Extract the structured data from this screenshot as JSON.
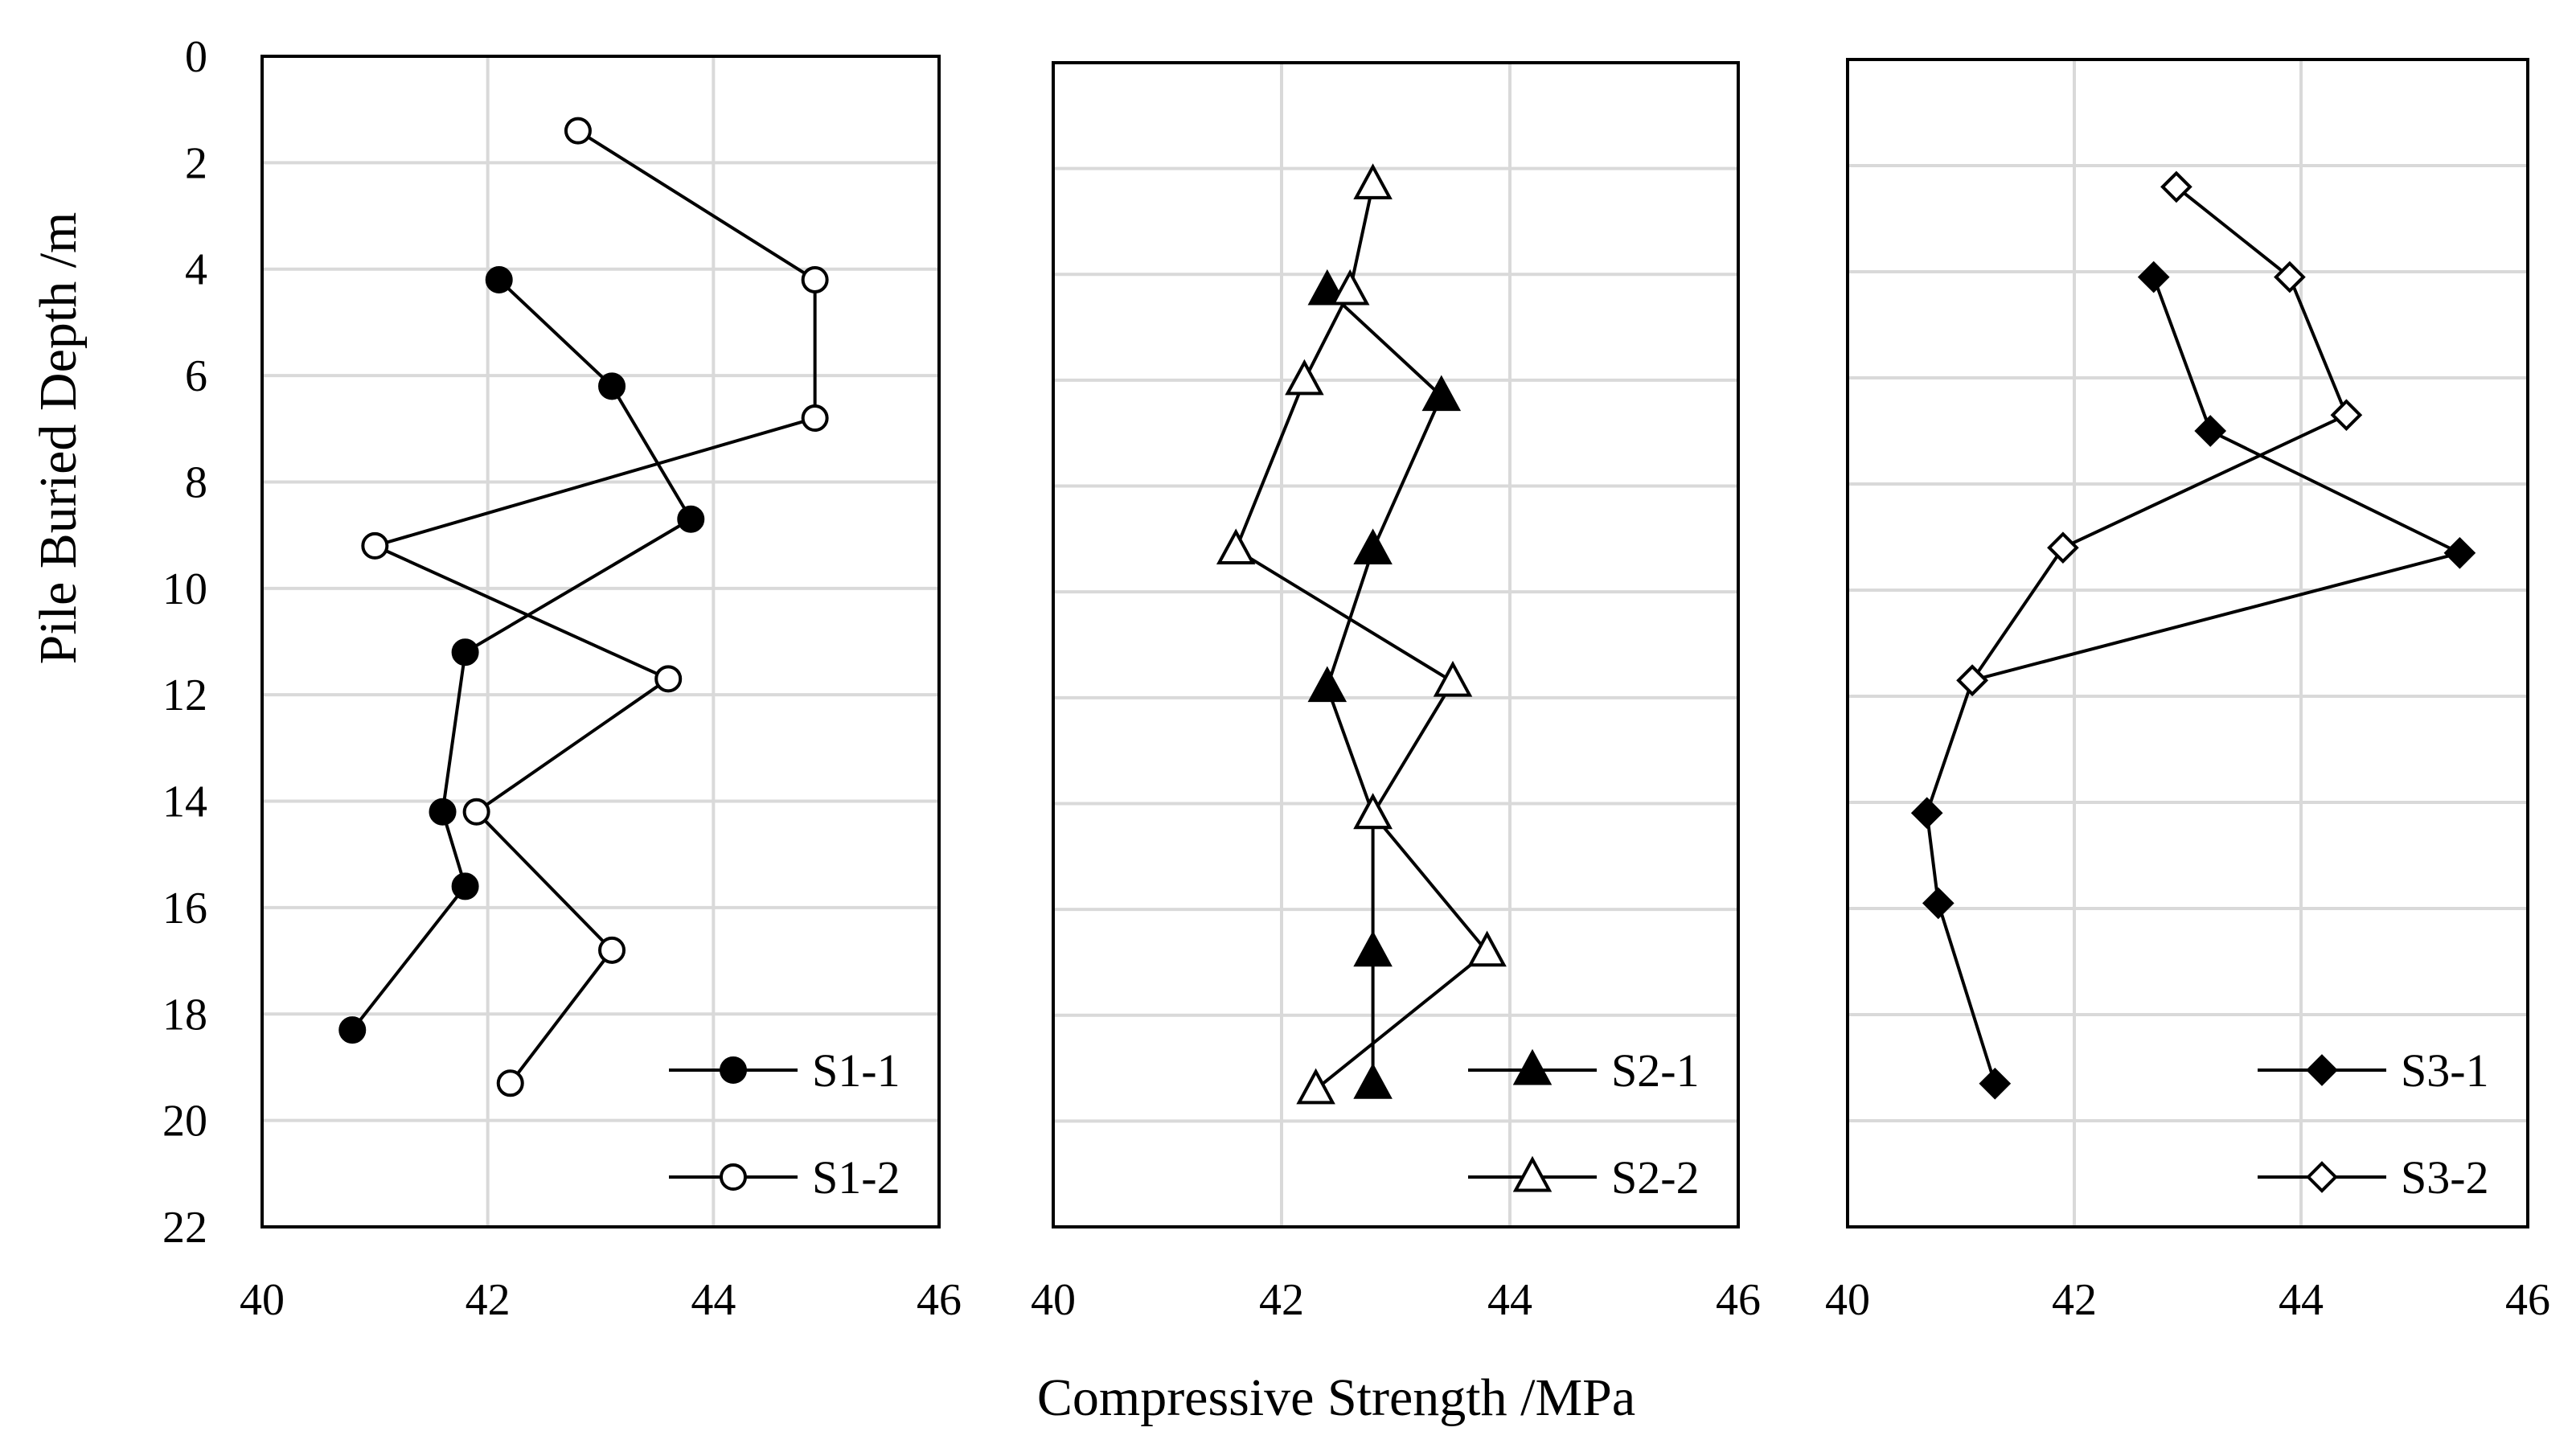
{
  "chart_data": {
    "type": "line",
    "figure_xlabel": "Compressive Strength /MPa",
    "figure_ylabel": "Pile Buried Depth /m",
    "xlim": [
      40,
      46
    ],
    "ylim": [
      22,
      0
    ],
    "x_ticks": [
      "40",
      "42",
      "44",
      "46"
    ],
    "y_ticks": [
      "0",
      "2",
      "4",
      "6",
      "8",
      "10",
      "12",
      "14",
      "16",
      "18",
      "20",
      "22"
    ],
    "gridlines": true,
    "panels": [
      {
        "legend_position": "bottom-right",
        "series": [
          {
            "name": "S1-1",
            "marker": "circle",
            "filled": true,
            "points": [
              {
                "x": 42.1,
                "y": 4.2
              },
              {
                "x": 43.1,
                "y": 6.2
              },
              {
                "x": 43.8,
                "y": 8.7
              },
              {
                "x": 41.8,
                "y": 11.2
              },
              {
                "x": 41.6,
                "y": 14.2
              },
              {
                "x": 41.8,
                "y": 15.6
              },
              {
                "x": 40.8,
                "y": 18.3
              }
            ]
          },
          {
            "name": "S1-2",
            "marker": "circle",
            "filled": false,
            "points": [
              {
                "x": 42.8,
                "y": 1.4
              },
              {
                "x": 44.9,
                "y": 4.2
              },
              {
                "x": 44.9,
                "y": 6.8
              },
              {
                "x": 41.0,
                "y": 9.2
              },
              {
                "x": 43.6,
                "y": 11.7
              },
              {
                "x": 41.9,
                "y": 14.2
              },
              {
                "x": 43.1,
                "y": 16.8
              },
              {
                "x": 42.2,
                "y": 19.3
              }
            ]
          }
        ]
      },
      {
        "legend_position": "bottom-right",
        "series": [
          {
            "name": "S2-1",
            "marker": "triangle",
            "filled": true,
            "points": [
              {
                "x": 42.4,
                "y": 4.3
              },
              {
                "x": 43.4,
                "y": 6.3
              },
              {
                "x": 42.8,
                "y": 9.2
              },
              {
                "x": 42.4,
                "y": 11.8
              },
              {
                "x": 42.8,
                "y": 14.2
              },
              {
                "x": 42.8,
                "y": 16.8
              },
              {
                "x": 42.8,
                "y": 19.3
              }
            ]
          },
          {
            "name": "S2-2",
            "marker": "triangle",
            "filled": false,
            "points": [
              {
                "x": 42.8,
                "y": 2.3
              },
              {
                "x": 42.6,
                "y": 4.3
              },
              {
                "x": 42.2,
                "y": 6.0
              },
              {
                "x": 41.6,
                "y": 9.2
              },
              {
                "x": 43.5,
                "y": 11.7
              },
              {
                "x": 42.8,
                "y": 14.2
              },
              {
                "x": 43.8,
                "y": 16.8
              },
              {
                "x": 42.3,
                "y": 19.4
              }
            ]
          }
        ]
      },
      {
        "legend_position": "bottom-right",
        "series": [
          {
            "name": "S3-1",
            "marker": "diamond",
            "filled": true,
            "points": [
              {
                "x": 42.7,
                "y": 4.1
              },
              {
                "x": 43.2,
                "y": 7.0
              },
              {
                "x": 45.4,
                "y": 9.3
              },
              {
                "x": 41.1,
                "y": 11.7
              },
              {
                "x": 40.7,
                "y": 14.2
              },
              {
                "x": 40.8,
                "y": 15.9
              },
              {
                "x": 41.3,
                "y": 19.3
              }
            ]
          },
          {
            "name": "S3-2",
            "marker": "diamond",
            "filled": false,
            "points": [
              {
                "x": 42.9,
                "y": 2.4
              },
              {
                "x": 43.9,
                "y": 4.1
              },
              {
                "x": 44.4,
                "y": 6.7
              },
              {
                "x": 41.9,
                "y": 9.2
              },
              {
                "x": 41.1,
                "y": 11.7
              }
            ]
          }
        ]
      }
    ]
  }
}
